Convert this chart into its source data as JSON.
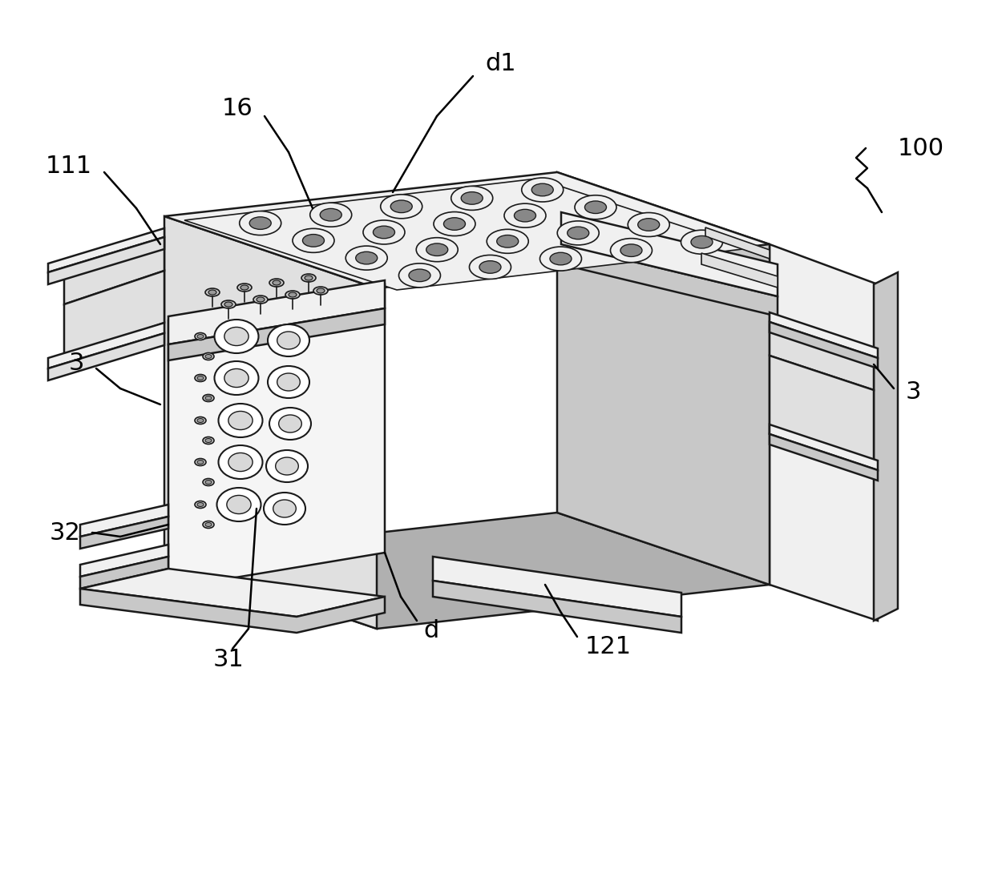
{
  "bg_color": "#ffffff",
  "line_color": "#1a1a1a",
  "fill_light": "#f0f0f0",
  "fill_mid": "#e0e0e0",
  "fill_dark": "#c8c8c8",
  "fill_darker": "#b0b0b0",
  "lw_main": 1.8,
  "lw_detail": 1.2,
  "lw_ann": 1.8,
  "label_fontsize": 22,
  "figsize": [
    12.4,
    10.85
  ],
  "dpi": 100
}
